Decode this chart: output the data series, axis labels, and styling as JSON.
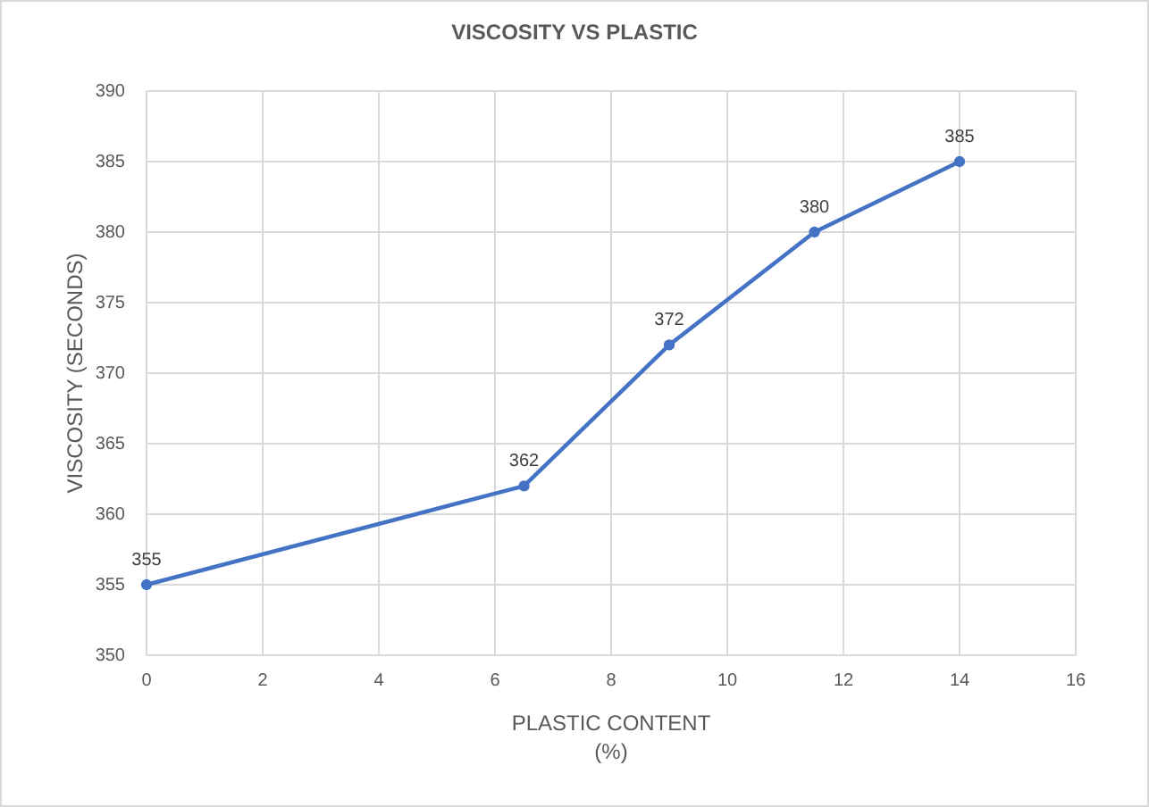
{
  "chart_data": {
    "type": "line",
    "title": "VISCOSITY VS PLASTIC",
    "xlabel": "PLASTIC CONTENT\n(%)",
    "ylabel": "VISCOSITY (SECONDS)",
    "x": [
      0,
      6.5,
      9,
      11.5,
      14
    ],
    "series": [
      {
        "color": "#4472c4",
        "values": [
          355,
          362,
          372,
          380,
          385
        ]
      }
    ],
    "xlim": [
      0,
      16
    ],
    "xticks": [
      0,
      2,
      4,
      6,
      8,
      10,
      12,
      14,
      16
    ],
    "ylim": [
      350,
      390
    ],
    "yticks": [
      350,
      355,
      360,
      365,
      370,
      375,
      380,
      385,
      390
    ],
    "grid": true,
    "marker": "circle",
    "line_style": "solid",
    "data_labels": true
  }
}
